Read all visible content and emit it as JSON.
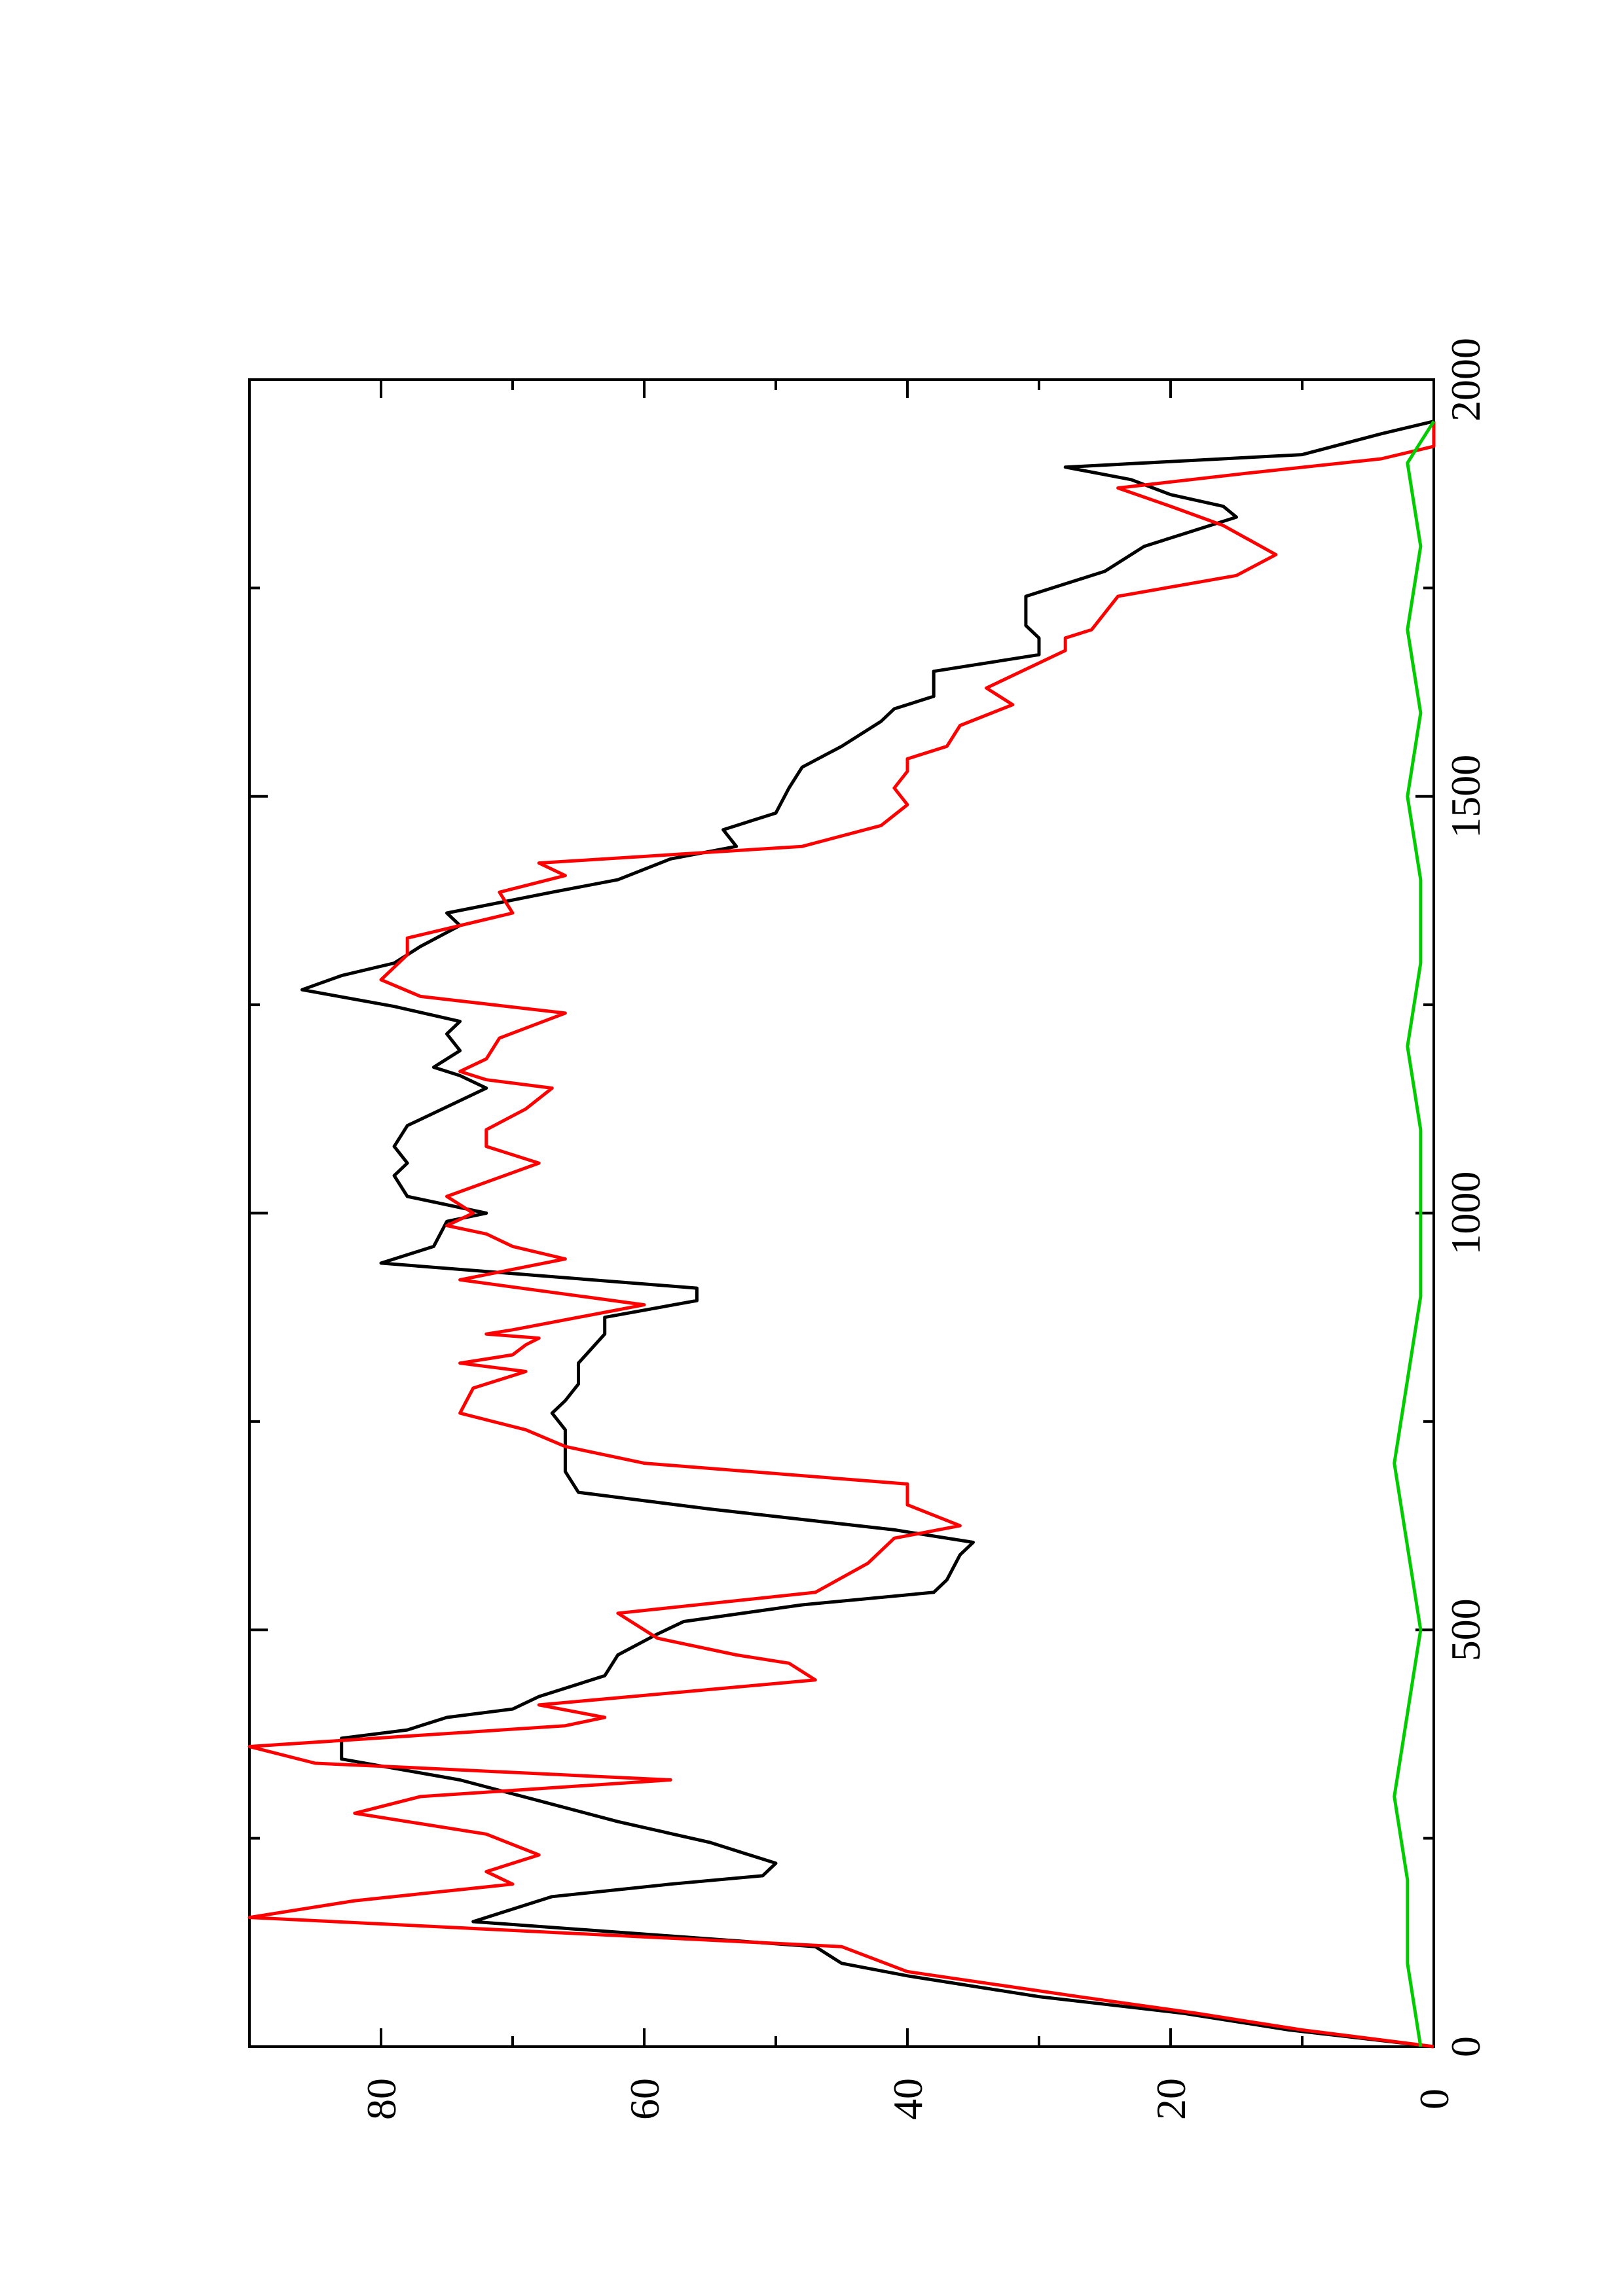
{
  "chart_data": {
    "type": "line",
    "orientation": "rotated 90 degrees counter-clockwise",
    "title": "",
    "xlabel": "",
    "ylabel": "",
    "xlim": [
      0,
      2000
    ],
    "ylim": [
      0,
      90
    ],
    "x_ticks": [
      "0",
      "500",
      "1000",
      "1500",
      "2000"
    ],
    "y_ticks": [
      "0",
      "20",
      "40",
      "60",
      "80"
    ],
    "grid": false,
    "legend": "none",
    "series": [
      {
        "color": "#000000",
        "points": [
          [
            0,
            0
          ],
          [
            20,
            11
          ],
          [
            40,
            19
          ],
          [
            60,
            30
          ],
          [
            85,
            40
          ],
          [
            100,
            45
          ],
          [
            120,
            47
          ],
          [
            150,
            73
          ],
          [
            165,
            70
          ],
          [
            180,
            67
          ],
          [
            195,
            58
          ],
          [
            205,
            51
          ],
          [
            220,
            50
          ],
          [
            245,
            55
          ],
          [
            270,
            62
          ],
          [
            295,
            68
          ],
          [
            320,
            74
          ],
          [
            345,
            83
          ],
          [
            370,
            83
          ],
          [
            380,
            78
          ],
          [
            395,
            75
          ],
          [
            405,
            70
          ],
          [
            420,
            68
          ],
          [
            445,
            63
          ],
          [
            470,
            62
          ],
          [
            495,
            59
          ],
          [
            510,
            57
          ],
          [
            530,
            48
          ],
          [
            545,
            38
          ],
          [
            560,
            37
          ],
          [
            590,
            36
          ],
          [
            605,
            35
          ],
          [
            620,
            41
          ],
          [
            645,
            55
          ],
          [
            655,
            60
          ],
          [
            665,
            65
          ],
          [
            690,
            66
          ],
          [
            715,
            66
          ],
          [
            740,
            66
          ],
          [
            760,
            67
          ],
          [
            775,
            66
          ],
          [
            795,
            65
          ],
          [
            820,
            65
          ],
          [
            855,
            63
          ],
          [
            875,
            63
          ],
          [
            895,
            56
          ],
          [
            910,
            56
          ],
          [
            925,
            68
          ],
          [
            940,
            80
          ],
          [
            960,
            76
          ],
          [
            990,
            75
          ],
          [
            1000,
            72
          ],
          [
            1020,
            78
          ],
          [
            1045,
            79
          ],
          [
            1060,
            78
          ],
          [
            1080,
            79
          ],
          [
            1105,
            78
          ],
          [
            1135,
            74
          ],
          [
            1150,
            72
          ],
          [
            1165,
            74
          ],
          [
            1175,
            76
          ],
          [
            1195,
            74
          ],
          [
            1215,
            75
          ],
          [
            1230,
            74
          ],
          [
            1248,
            79
          ],
          [
            1268,
            86
          ],
          [
            1285,
            83
          ],
          [
            1300,
            79
          ],
          [
            1320,
            77
          ],
          [
            1345,
            74
          ],
          [
            1360,
            75
          ],
          [
            1385,
            67
          ],
          [
            1400,
            62
          ],
          [
            1425,
            58
          ],
          [
            1440,
            53
          ],
          [
            1460,
            54
          ],
          [
            1480,
            50
          ],
          [
            1510,
            49
          ],
          [
            1535,
            48
          ],
          [
            1560,
            45
          ],
          [
            1590,
            42
          ],
          [
            1605,
            41
          ],
          [
            1620,
            38
          ],
          [
            1650,
            38
          ],
          [
            1670,
            30
          ],
          [
            1690,
            30
          ],
          [
            1705,
            31
          ],
          [
            1740,
            31
          ],
          [
            1770,
            25
          ],
          [
            1800,
            22
          ],
          [
            1815,
            19
          ],
          [
            1835,
            15
          ],
          [
            1848,
            16
          ],
          [
            1862,
            20
          ],
          [
            1880,
            23
          ],
          [
            1895,
            28
          ],
          [
            1910,
            10
          ],
          [
            1935,
            4
          ],
          [
            1950,
            0
          ]
        ]
      },
      {
        "color": "#ff0000",
        "points": [
          [
            0,
            0
          ],
          [
            20,
            10
          ],
          [
            40,
            18
          ],
          [
            60,
            27
          ],
          [
            90,
            40
          ],
          [
            120,
            45
          ],
          [
            155,
            90
          ],
          [
            175,
            82
          ],
          [
            195,
            70
          ],
          [
            210,
            72
          ],
          [
            230,
            68
          ],
          [
            255,
            72
          ],
          [
            280,
            82
          ],
          [
            300,
            77
          ],
          [
            320,
            58
          ],
          [
            335,
            78
          ],
          [
            340,
            85
          ],
          [
            360,
            90
          ],
          [
            385,
            66
          ],
          [
            395,
            63
          ],
          [
            410,
            68
          ],
          [
            440,
            47
          ],
          [
            460,
            49
          ],
          [
            470,
            53
          ],
          [
            490,
            59
          ],
          [
            520,
            62
          ],
          [
            545,
            47
          ],
          [
            580,
            43
          ],
          [
            610,
            41
          ],
          [
            625,
            36
          ],
          [
            650,
            40
          ],
          [
            675,
            40
          ],
          [
            700,
            60
          ],
          [
            720,
            66
          ],
          [
            740,
            69
          ],
          [
            760,
            74
          ],
          [
            790,
            73
          ],
          [
            810,
            69
          ],
          [
            820,
            74
          ],
          [
            825,
            72
          ],
          [
            830,
            70
          ],
          [
            842,
            69
          ],
          [
            850,
            68
          ],
          [
            855,
            72
          ],
          [
            860,
            70
          ],
          [
            890,
            60
          ],
          [
            920,
            74
          ],
          [
            945,
            66
          ],
          [
            960,
            70
          ],
          [
            975,
            72
          ],
          [
            985,
            75
          ],
          [
            1000,
            73
          ],
          [
            1020,
            75
          ],
          [
            1060,
            68
          ],
          [
            1080,
            72
          ],
          [
            1100,
            72
          ],
          [
            1125,
            69
          ],
          [
            1150,
            67
          ],
          [
            1160,
            72
          ],
          [
            1170,
            74
          ],
          [
            1185,
            72
          ],
          [
            1210,
            71
          ],
          [
            1240,
            66
          ],
          [
            1260,
            77
          ],
          [
            1280,
            80
          ],
          [
            1310,
            78
          ],
          [
            1330,
            78
          ],
          [
            1360,
            70
          ],
          [
            1385,
            71
          ],
          [
            1405,
            66
          ],
          [
            1420,
            68
          ],
          [
            1440,
            48
          ],
          [
            1465,
            42
          ],
          [
            1490,
            40
          ],
          [
            1510,
            41
          ],
          [
            1530,
            40
          ],
          [
            1545,
            40
          ],
          [
            1560,
            37
          ],
          [
            1585,
            36
          ],
          [
            1610,
            32
          ],
          [
            1630,
            34
          ],
          [
            1660,
            30
          ],
          [
            1675,
            28
          ],
          [
            1690,
            28
          ],
          [
            1700,
            26
          ],
          [
            1720,
            25
          ],
          [
            1740,
            24
          ],
          [
            1765,
            15
          ],
          [
            1790,
            12
          ],
          [
            1825,
            16
          ],
          [
            1848,
            20
          ],
          [
            1870,
            24
          ],
          [
            1888,
            14
          ],
          [
            1905,
            4
          ],
          [
            1920,
            0
          ],
          [
            1950,
            0
          ]
        ]
      },
      {
        "color": "#00cc00",
        "points": [
          [
            0,
            1
          ],
          [
            100,
            2
          ],
          [
            200,
            2
          ],
          [
            300,
            3
          ],
          [
            400,
            2
          ],
          [
            500,
            1
          ],
          [
            600,
            2
          ],
          [
            700,
            3
          ],
          [
            800,
            2
          ],
          [
            900,
            1
          ],
          [
            1000,
            1
          ],
          [
            1100,
            1
          ],
          [
            1200,
            2
          ],
          [
            1300,
            1
          ],
          [
            1400,
            1
          ],
          [
            1500,
            2
          ],
          [
            1600,
            1
          ],
          [
            1700,
            2
          ],
          [
            1800,
            1
          ],
          [
            1900,
            2
          ],
          [
            1950,
            0
          ]
        ]
      }
    ]
  }
}
